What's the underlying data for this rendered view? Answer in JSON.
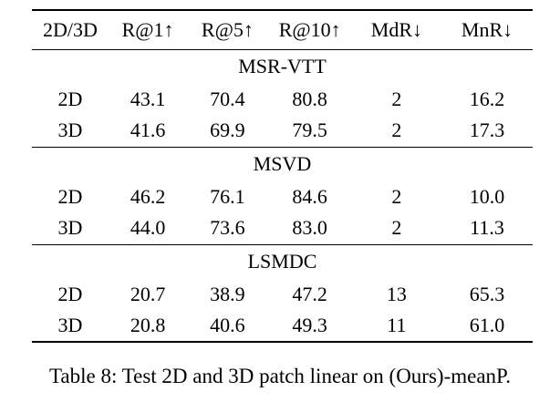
{
  "colors": {
    "background": "#ffffff",
    "text": "#000000",
    "rule": "#000000"
  },
  "table": {
    "columns": [
      "2D/3D",
      "R@1↑",
      "R@5↑",
      "R@10↑",
      "MdR↓",
      "MnR↓"
    ],
    "sections": [
      {
        "name": "MSR-VTT",
        "rows": [
          [
            "2D",
            "43.1",
            "70.4",
            "80.8",
            "2",
            "16.2"
          ],
          [
            "3D",
            "41.6",
            "69.9",
            "79.5",
            "2",
            "17.3"
          ]
        ]
      },
      {
        "name": "MSVD",
        "rows": [
          [
            "2D",
            "46.2",
            "76.1",
            "84.6",
            "2",
            "10.0"
          ],
          [
            "3D",
            "44.0",
            "73.6",
            "83.0",
            "2",
            "11.3"
          ]
        ]
      },
      {
        "name": "LSMDC",
        "rows": [
          [
            "2D",
            "20.7",
            "38.9",
            "47.2",
            "13",
            "65.3"
          ],
          [
            "3D",
            "20.8",
            "40.6",
            "49.3",
            "11",
            "61.0"
          ]
        ]
      }
    ],
    "caption": "Table 8: Test 2D and 3D patch linear on (Ours)-meanP."
  },
  "chart_data": {
    "type": "table",
    "title": "Table 8: Test 2D and 3D patch linear on (Ours)-meanP.",
    "columns": [
      "2D/3D",
      "R@1",
      "R@5",
      "R@10",
      "MdR",
      "MnR"
    ],
    "groups": [
      {
        "dataset": "MSR-VTT",
        "rows": [
          {
            "patch": "2D",
            "R@1": 43.1,
            "R@5": 70.4,
            "R@10": 80.8,
            "MdR": 2,
            "MnR": 16.2
          },
          {
            "patch": "3D",
            "R@1": 41.6,
            "R@5": 69.9,
            "R@10": 79.5,
            "MdR": 2,
            "MnR": 17.3
          }
        ]
      },
      {
        "dataset": "MSVD",
        "rows": [
          {
            "patch": "2D",
            "R@1": 46.2,
            "R@5": 76.1,
            "R@10": 84.6,
            "MdR": 2,
            "MnR": 10.0
          },
          {
            "patch": "3D",
            "R@1": 44.0,
            "R@5": 73.6,
            "R@10": 83.0,
            "MdR": 2,
            "MnR": 11.3
          }
        ]
      },
      {
        "dataset": "LSMDC",
        "rows": [
          {
            "patch": "2D",
            "R@1": 20.7,
            "R@5": 38.9,
            "R@10": 47.2,
            "MdR": 13,
            "MnR": 65.3
          },
          {
            "patch": "3D",
            "R@1": 20.8,
            "R@5": 40.6,
            "R@10": 49.3,
            "MdR": 11,
            "MnR": 61.0
          }
        ]
      }
    ]
  }
}
